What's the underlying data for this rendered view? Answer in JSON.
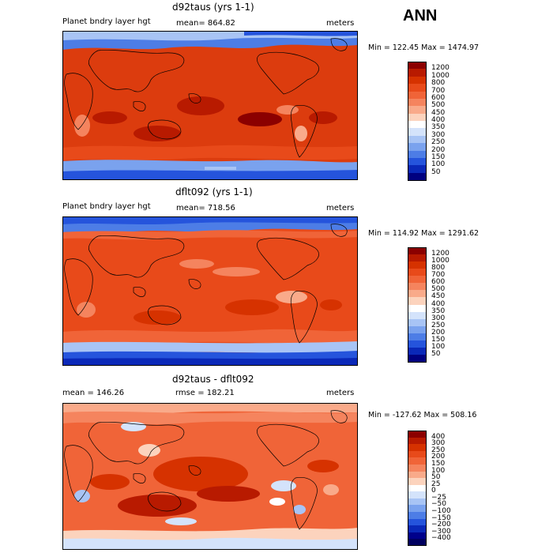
{
  "season": "ANN",
  "panels": [
    {
      "title": "d92taus (yrs 1-1)",
      "left_label": "Planet bndry layer hgt",
      "center_label": "mean= 864.82",
      "right_label": "meters",
      "minmax": "Min = 122.45 Max = 1474.97",
      "colorbar": {
        "labels": [
          "1200",
          "1000",
          "800",
          "700",
          "600",
          "500",
          "450",
          "400",
          "350",
          "300",
          "250",
          "200",
          "150",
          "100",
          "50"
        ],
        "colors": [
          "#8b0000",
          "#b81a00",
          "#d63200",
          "#e84a1a",
          "#f06438",
          "#f5845e",
          "#f9aa8a",
          "#fcd3bd",
          "#ffffff",
          "#d4e3fb",
          "#a8c4f5",
          "#7aa2ee",
          "#4d7de6",
          "#2554dc",
          "#0a28b8",
          "#000080"
        ]
      }
    },
    {
      "title": "dflt092 (yrs 1-1)",
      "left_label": "Planet bndry layer hgt",
      "center_label": "mean= 718.56",
      "right_label": "meters",
      "minmax": "Min = 114.92 Max = 1291.62",
      "colorbar": {
        "labels": [
          "1200",
          "1000",
          "800",
          "700",
          "600",
          "500",
          "450",
          "400",
          "350",
          "300",
          "250",
          "200",
          "150",
          "100",
          "50"
        ],
        "colors": [
          "#8b0000",
          "#b81a00",
          "#d63200",
          "#e84a1a",
          "#f06438",
          "#f5845e",
          "#f9aa8a",
          "#fcd3bd",
          "#ffffff",
          "#d4e3fb",
          "#a8c4f5",
          "#7aa2ee",
          "#4d7de6",
          "#2554dc",
          "#0a28b8",
          "#000080"
        ]
      }
    },
    {
      "title": "d92taus - dflt092",
      "left_label": "mean = 146.26",
      "center_label": "rmse = 182.21",
      "right_label": "meters",
      "minmax": "Min = -127.62 Max = 508.16",
      "colorbar": {
        "labels": [
          "400",
          "300",
          "250",
          "200",
          "150",
          "100",
          "50",
          "25",
          "0",
          "−25",
          "−50",
          "−100",
          "−150",
          "−200",
          "−300",
          "−400"
        ],
        "colors": [
          "#8b0000",
          "#b81a00",
          "#d63200",
          "#e84a1a",
          "#f06438",
          "#f5845e",
          "#f9aa8a",
          "#fcd3bd",
          "#ffffff",
          "#d4e3fb",
          "#a8c4f5",
          "#7aa2ee",
          "#4d7de6",
          "#2554dc",
          "#0a28b8",
          "#00008b",
          "#000060"
        ]
      }
    }
  ]
}
